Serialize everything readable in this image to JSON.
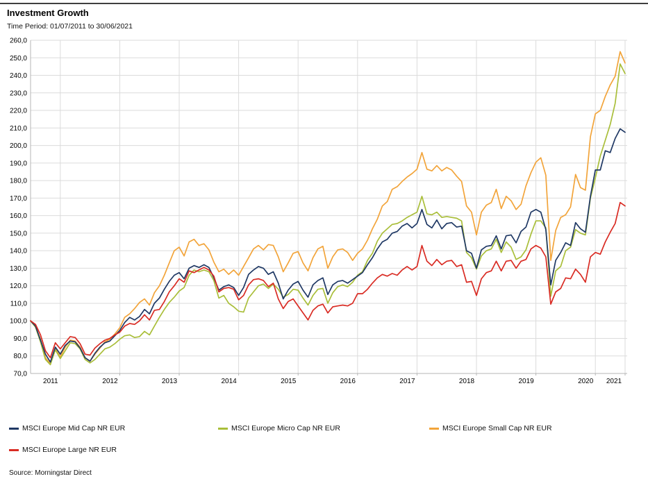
{
  "header": {
    "title": "Investment Growth",
    "subtitle": "Time Period: 01/07/2011 to 30/06/2021"
  },
  "chart_data": {
    "type": "line",
    "title": "Investment Growth",
    "subtitle": "Time Period: 01/07/2011 to 30/06/2021",
    "frequency": "monthly",
    "x_start": "2011-06",
    "x_end": "2021-06",
    "ylim": [
      70,
      260
    ],
    "ytick_step": 10,
    "grid": true,
    "legend_position": "bottom",
    "y_tick_labels": [
      "260,0",
      "250,0",
      "240,0",
      "230,0",
      "220,0",
      "210,0",
      "200,0",
      "190,0",
      "180,0",
      "170,0",
      "160,0",
      "150,0",
      "140,0",
      "130,0",
      "120,0",
      "110,0",
      "100,0",
      "90,0",
      "80,0",
      "70,0"
    ],
    "x_tick_labels": [
      "2011",
      "2012",
      "2013",
      "2014",
      "2015",
      "2016",
      "2017",
      "2018",
      "2019",
      "2020",
      "2021"
    ],
    "source": "Source: Morningstar Direct",
    "colors": {
      "grid": "#dbdbdb",
      "axis": "#b5b5b5",
      "text": "#000000"
    },
    "series": [
      {
        "name": "MSCI Europe Mid Cap NR EUR",
        "color": "#1F3864",
        "values": [
          100,
          97,
          89,
          81,
          76.5,
          85,
          81,
          86,
          88.5,
          88,
          84.5,
          79,
          77,
          81.5,
          85,
          87.5,
          88.5,
          91.5,
          94.5,
          99,
          102,
          100.5,
          102.5,
          106.5,
          104,
          110,
          113,
          118,
          122.5,
          126,
          127.5,
          124,
          130,
          131.5,
          130.5,
          132,
          130.5,
          124.5,
          117.5,
          119.5,
          120.5,
          119,
          114.5,
          119,
          126.5,
          129,
          131,
          130,
          126.5,
          128,
          121.5,
          112.5,
          117.5,
          121,
          122.5,
          117.5,
          113.5,
          120.5,
          123,
          124.5,
          115,
          120.5,
          122.5,
          123,
          121.5,
          123.5,
          125.5,
          127.5,
          132,
          136,
          141,
          145,
          146.5,
          150,
          151,
          154,
          155.5,
          153,
          155.5,
          163.5,
          155,
          153,
          157.5,
          152.5,
          155.5,
          156,
          153.5,
          154,
          140,
          138.5,
          130,
          140.5,
          142.5,
          143,
          148.5,
          141,
          148.5,
          149,
          144.5,
          151,
          153.5,
          162,
          163.5,
          162,
          152,
          120.5,
          134.5,
          139,
          144.5,
          143,
          156,
          152.5,
          150.5,
          171,
          186,
          186,
          197,
          196,
          204,
          209.5,
          207.5
        ]
      },
      {
        "name": "MSCI Europe Micro Cap NR EUR",
        "color": "#A9BE39",
        "values": [
          100,
          96.5,
          88,
          78,
          75,
          83.5,
          78.5,
          83,
          87.5,
          87,
          84,
          78,
          76,
          78,
          81,
          84,
          85,
          87,
          89.5,
          91.5,
          92,
          90.5,
          91,
          94,
          92,
          97,
          102,
          106.5,
          110.5,
          113.5,
          117,
          119,
          126,
          129,
          128,
          129,
          128,
          123,
          113,
          114.5,
          110,
          108,
          105.5,
          105,
          113,
          116.5,
          120,
          121,
          118.5,
          121,
          118,
          113.5,
          115,
          118,
          117.5,
          113,
          109,
          114.5,
          118,
          118.5,
          110,
          116,
          119.5,
          120.5,
          119.5,
          122,
          126,
          128,
          134.5,
          138.5,
          145.5,
          150,
          152.5,
          155,
          155.5,
          157,
          159,
          160.5,
          162,
          171,
          161,
          160.5,
          162,
          159,
          159.5,
          159,
          158.5,
          157,
          139,
          136,
          129.5,
          137,
          140,
          141,
          146.5,
          139,
          145,
          142,
          135,
          136.5,
          140.5,
          149.5,
          157,
          157,
          153,
          114,
          128.5,
          131,
          140,
          142,
          152,
          150,
          149,
          170,
          181.5,
          194,
          203,
          212,
          224,
          246.5,
          241
        ]
      },
      {
        "name": "MSCI Europe Small Cap NR EUR",
        "color": "#F2A43A",
        "values": [
          100,
          96.5,
          89.5,
          79,
          75.5,
          84,
          79.5,
          85,
          89,
          88.5,
          85,
          79,
          77,
          81,
          84.5,
          88,
          89.5,
          92.5,
          96,
          102,
          104,
          107,
          110.5,
          112.5,
          109,
          116,
          120,
          126,
          133,
          140,
          142,
          137,
          145,
          146.5,
          143,
          144,
          140.5,
          133.5,
          128,
          129.5,
          126.5,
          129,
          126,
          131,
          136,
          141,
          143,
          140.5,
          143.5,
          143,
          136.5,
          128,
          133,
          138.5,
          139.5,
          133,
          128.5,
          136,
          141,
          142.5,
          130,
          136.5,
          140.5,
          141,
          139,
          134.5,
          138.5,
          141,
          146,
          152.5,
          158,
          165.5,
          168,
          175,
          176.5,
          179.5,
          182,
          184,
          186.5,
          196,
          186.5,
          185.5,
          188.5,
          185.5,
          187.5,
          186,
          182.5,
          179.5,
          165.5,
          162,
          149,
          162,
          166,
          167.5,
          175,
          164,
          171,
          168.5,
          163.5,
          166.5,
          177,
          184.5,
          190.5,
          193,
          183,
          134.5,
          151.5,
          159,
          160.5,
          165,
          183.5,
          176,
          174.5,
          205,
          218,
          220,
          228,
          234.5,
          239.5,
          253.5,
          247
        ]
      },
      {
        "name": "MSCI Europe Large NR EUR",
        "color": "#D92B23",
        "values": [
          100,
          98,
          92,
          83,
          79,
          87.5,
          84,
          87.5,
          91,
          90.5,
          87,
          81,
          80.5,
          84.5,
          87,
          89,
          90,
          92,
          93.5,
          97,
          98.5,
          98,
          100,
          103.5,
          100.5,
          106,
          106.5,
          111,
          116.5,
          120,
          124,
          122,
          128.5,
          127.5,
          129,
          130.5,
          129,
          125.5,
          116.5,
          118.5,
          119,
          118,
          112,
          114.5,
          120.5,
          123.5,
          124,
          123,
          119.5,
          121.5,
          112.5,
          107,
          111,
          112.5,
          108.5,
          104.5,
          100.5,
          106,
          108.5,
          109.5,
          104.5,
          108,
          108.5,
          109,
          108.5,
          110,
          115.5,
          115.5,
          118,
          121.5,
          124.5,
          126.5,
          125.5,
          127,
          126,
          129,
          131,
          129,
          131,
          143,
          134,
          131.5,
          135,
          132,
          134,
          134.5,
          131,
          132,
          122,
          122.5,
          114.5,
          124,
          127.5,
          128.5,
          134,
          128.5,
          134,
          134.5,
          130,
          134,
          135,
          141,
          143,
          141.5,
          136.5,
          109.5,
          116.5,
          118.5,
          124.5,
          124,
          129.5,
          126.5,
          122,
          136.5,
          139,
          138,
          145,
          150.5,
          155.5,
          167.5,
          165.5
        ]
      }
    ]
  }
}
